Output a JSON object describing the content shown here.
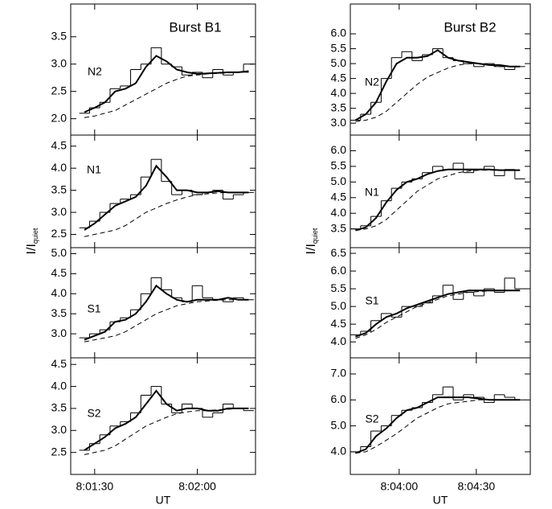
{
  "chart_data": [
    {
      "type": "line",
      "panel_label": "N2",
      "title": "Burst B1",
      "x": [
        28887,
        28890,
        28893,
        28896,
        28899,
        28902,
        28905,
        28908,
        28911,
        28914,
        28917,
        28920,
        28923,
        28926,
        28929,
        28932,
        28935
      ],
      "xlim": [
        28883,
        28937
      ],
      "ylim": [
        1.7,
        4.1
      ],
      "yticks": [
        {
          "value": 2.0,
          "label": "2.0"
        },
        {
          "value": 2.5,
          "label": "2.5"
        },
        {
          "value": 3.0,
          "label": "3.0"
        },
        {
          "value": 3.5,
          "label": "3.5"
        }
      ],
      "series": [
        {
          "style": "step",
          "color": "#000000",
          "values": [
            2.1,
            2.2,
            2.3,
            2.55,
            2.6,
            2.9,
            3.0,
            3.3,
            3.0,
            2.95,
            2.8,
            2.85,
            2.75,
            2.9,
            2.8,
            2.85,
            3.0
          ]
        },
        {
          "style": "smooth",
          "color": "#000000",
          "values": [
            2.12,
            2.2,
            2.3,
            2.5,
            2.55,
            2.65,
            2.95,
            3.15,
            3.05,
            2.9,
            2.85,
            2.82,
            2.83,
            2.84,
            2.85,
            2.85,
            2.87
          ]
        },
        {
          "style": "dashed",
          "color": "#000000",
          "values": [
            2.02,
            2.05,
            2.1,
            2.15,
            2.25,
            2.35,
            2.45,
            2.55,
            2.65,
            2.72,
            2.78,
            2.8,
            2.82,
            2.83,
            2.84,
            2.85,
            2.85
          ]
        }
      ]
    },
    {
      "type": "line",
      "panel_label": "N1",
      "ylabel": {
        "main": "I/I",
        "sub": "quiet"
      },
      "x": [
        28887,
        28890,
        28893,
        28896,
        28899,
        28902,
        28905,
        28908,
        28911,
        28914,
        28917,
        28920,
        28923,
        28926,
        28929,
        28932,
        28935
      ],
      "xlim": [
        28883,
        28937
      ],
      "ylim": [
        2.2,
        4.75
      ],
      "yticks": [
        {
          "value": 2.5,
          "label": "2.5"
        },
        {
          "value": 3.0,
          "label": "3.0"
        },
        {
          "value": 3.5,
          "label": "3.5"
        },
        {
          "value": 4.0,
          "label": "4.0"
        },
        {
          "value": 4.5,
          "label": "4.5"
        }
      ],
      "series": [
        {
          "style": "step",
          "color": "#000000",
          "values": [
            2.65,
            2.8,
            3.0,
            3.2,
            3.3,
            3.4,
            3.8,
            4.2,
            3.7,
            3.4,
            3.5,
            3.4,
            3.45,
            3.5,
            3.3,
            3.4,
            3.45
          ]
        },
        {
          "style": "smooth",
          "color": "#000000",
          "values": [
            2.6,
            2.75,
            2.95,
            3.15,
            3.25,
            3.35,
            3.6,
            4.05,
            3.8,
            3.5,
            3.5,
            3.45,
            3.45,
            3.48,
            3.45,
            3.45,
            3.45
          ]
        },
        {
          "style": "dashed",
          "color": "#000000",
          "values": [
            2.45,
            2.5,
            2.55,
            2.6,
            2.7,
            2.85,
            3.0,
            3.1,
            3.2,
            3.28,
            3.35,
            3.4,
            3.42,
            3.44,
            3.45,
            3.45,
            3.45
          ]
        }
      ]
    },
    {
      "type": "line",
      "panel_label": "S1",
      "x": [
        28887,
        28890,
        28893,
        28896,
        28899,
        28902,
        28905,
        28908,
        28911,
        28914,
        28917,
        28920,
        28923,
        28926,
        28929,
        28932,
        28935
      ],
      "xlim": [
        28883,
        28937
      ],
      "ylim": [
        2.4,
        5.15
      ],
      "yticks": [
        {
          "value": 3.0,
          "label": "3.0"
        },
        {
          "value": 3.5,
          "label": "3.5"
        },
        {
          "value": 4.0,
          "label": "4.0"
        },
        {
          "value": 4.5,
          "label": "4.5"
        },
        {
          "value": 5.0,
          "label": "5.0"
        }
      ],
      "series": [
        {
          "style": "step",
          "color": "#000000",
          "values": [
            2.9,
            3.0,
            3.1,
            3.3,
            3.4,
            3.6,
            4.0,
            4.4,
            4.1,
            3.9,
            3.8,
            4.2,
            3.9,
            3.85,
            3.8,
            3.9,
            3.85
          ]
        },
        {
          "style": "smooth",
          "color": "#000000",
          "values": [
            2.85,
            2.95,
            3.05,
            3.3,
            3.35,
            3.5,
            3.8,
            4.2,
            4.0,
            3.85,
            3.8,
            3.85,
            3.85,
            3.85,
            3.9,
            3.85,
            3.85
          ]
        },
        {
          "style": "dashed",
          "color": "#000000",
          "values": [
            2.8,
            2.85,
            2.9,
            2.95,
            3.05,
            3.2,
            3.35,
            3.5,
            3.6,
            3.7,
            3.75,
            3.8,
            3.82,
            3.84,
            3.85,
            3.85,
            3.85
          ]
        }
      ]
    },
    {
      "type": "line",
      "panel_label": "S2",
      "xlabel": "UT",
      "x": [
        28887,
        28890,
        28893,
        28896,
        28899,
        28902,
        28905,
        28908,
        28911,
        28914,
        28917,
        28920,
        28923,
        28926,
        28929,
        28932,
        28935
      ],
      "xlim": [
        28883,
        28937
      ],
      "xticks": [
        {
          "value": 28890,
          "label": "8:01:30"
        },
        {
          "value": 28920,
          "label": "8:02:00"
        }
      ],
      "ylim": [
        2.0,
        4.65
      ],
      "yticks": [
        {
          "value": 2.5,
          "label": "2.5"
        },
        {
          "value": 3.0,
          "label": "3.0"
        },
        {
          "value": 3.5,
          "label": "3.5"
        },
        {
          "value": 4.0,
          "label": "4.0"
        },
        {
          "value": 4.5,
          "label": "4.5"
        }
      ],
      "series": [
        {
          "style": "step",
          "color": "#000000",
          "values": [
            2.55,
            2.7,
            2.9,
            3.1,
            3.2,
            3.4,
            3.8,
            4.0,
            3.6,
            3.4,
            3.6,
            3.5,
            3.3,
            3.4,
            3.6,
            3.5,
            3.45
          ]
        },
        {
          "style": "smooth",
          "color": "#000000",
          "values": [
            2.55,
            2.7,
            2.85,
            3.05,
            3.15,
            3.3,
            3.6,
            3.9,
            3.6,
            3.45,
            3.5,
            3.5,
            3.45,
            3.45,
            3.5,
            3.5,
            3.5
          ]
        },
        {
          "style": "dashed",
          "color": "#000000",
          "values": [
            2.45,
            2.5,
            2.55,
            2.65,
            2.8,
            2.95,
            3.1,
            3.2,
            3.3,
            3.38,
            3.42,
            3.45,
            3.45,
            3.47,
            3.48,
            3.5,
            3.5
          ]
        }
      ]
    },
    {
      "type": "line",
      "panel_label": "N2",
      "title": "Burst B2",
      "x": [
        29023,
        29027,
        29031,
        29035,
        29039,
        29043,
        29047,
        29051,
        29055,
        29059,
        29063,
        29067,
        29071,
        29075,
        29079,
        29083,
        29087
      ],
      "xlim": [
        29021,
        29091
      ],
      "ylim": [
        2.6,
        7.0
      ],
      "yticks": [
        {
          "value": 3.0,
          "label": "3.0"
        },
        {
          "value": 3.5,
          "label": "3.5"
        },
        {
          "value": 4.0,
          "label": "4.0"
        },
        {
          "value": 4.5,
          "label": "4.5"
        },
        {
          "value": 5.0,
          "label": "5.0"
        },
        {
          "value": 5.5,
          "label": "5.5"
        },
        {
          "value": 6.0,
          "label": "6.0"
        }
      ],
      "series": [
        {
          "style": "step",
          "color": "#000000",
          "values": [
            3.1,
            3.3,
            3.7,
            4.5,
            5.2,
            5.4,
            5.1,
            5.3,
            5.5,
            5.2,
            5.1,
            5.0,
            4.9,
            5.0,
            4.9,
            4.8,
            4.9
          ]
        },
        {
          "style": "smooth",
          "color": "#000000",
          "values": [
            3.1,
            3.3,
            3.7,
            4.4,
            5.0,
            5.2,
            5.2,
            5.25,
            5.45,
            5.2,
            5.1,
            5.05,
            5.0,
            4.95,
            4.95,
            4.9,
            4.9
          ]
        },
        {
          "style": "dashed",
          "color": "#000000",
          "values": [
            3.05,
            3.1,
            3.2,
            3.4,
            3.7,
            4.0,
            4.3,
            4.55,
            4.7,
            4.85,
            4.95,
            5.0,
            5.0,
            4.95,
            4.9,
            4.9,
            4.9
          ]
        }
      ]
    },
    {
      "type": "line",
      "panel_label": "N1",
      "ylabel": {
        "main": "I/I",
        "sub": "quiet"
      },
      "x": [
        29023,
        29027,
        29031,
        29035,
        29039,
        29043,
        29047,
        29051,
        29055,
        29059,
        29063,
        29067,
        29071,
        29075,
        29079,
        29083,
        29087
      ],
      "xlim": [
        29021,
        29091
      ],
      "ylim": [
        2.9,
        6.5
      ],
      "yticks": [
        {
          "value": 3.5,
          "label": "3.5"
        },
        {
          "value": 4.0,
          "label": "4.0"
        },
        {
          "value": 4.5,
          "label": "4.5"
        },
        {
          "value": 5.0,
          "label": "5.0"
        },
        {
          "value": 5.5,
          "label": "5.5"
        },
        {
          "value": 6.0,
          "label": "6.0"
        }
      ],
      "series": [
        {
          "style": "step",
          "color": "#000000",
          "values": [
            3.5,
            3.6,
            3.9,
            4.4,
            4.8,
            5.0,
            5.1,
            5.3,
            5.5,
            5.4,
            5.6,
            5.3,
            5.4,
            5.5,
            5.2,
            5.4,
            5.1
          ]
        },
        {
          "style": "smooth",
          "color": "#000000",
          "values": [
            3.45,
            3.55,
            3.85,
            4.35,
            4.75,
            5.0,
            5.1,
            5.25,
            5.35,
            5.4,
            5.4,
            5.4,
            5.4,
            5.4,
            5.38,
            5.38,
            5.38
          ]
        },
        {
          "style": "dashed",
          "color": "#000000",
          "values": [
            3.45,
            3.5,
            3.6,
            3.8,
            4.1,
            4.4,
            4.7,
            4.9,
            5.1,
            5.2,
            5.3,
            5.35,
            5.38,
            5.38,
            5.38,
            5.38,
            5.38
          ]
        }
      ]
    },
    {
      "type": "line",
      "panel_label": "S1",
      "x": [
        29023,
        29027,
        29031,
        29035,
        29039,
        29043,
        29047,
        29051,
        29055,
        29059,
        29063,
        29067,
        29071,
        29075,
        29079,
        29083,
        29087
      ],
      "xlim": [
        29021,
        29091
      ],
      "ylim": [
        3.55,
        6.66
      ],
      "yticks": [
        {
          "value": 4.0,
          "label": "4.0"
        },
        {
          "value": 4.5,
          "label": "4.5"
        },
        {
          "value": 5.0,
          "label": "5.0"
        },
        {
          "value": 5.5,
          "label": "5.5"
        },
        {
          "value": 6.0,
          "label": "6.0"
        },
        {
          "value": 6.5,
          "label": "6.5"
        }
      ],
      "series": [
        {
          "style": "step",
          "color": "#000000",
          "values": [
            4.2,
            4.3,
            4.6,
            4.8,
            4.7,
            5.0,
            5.0,
            5.1,
            5.3,
            5.6,
            5.2,
            5.4,
            5.3,
            5.5,
            5.4,
            5.8,
            5.5
          ]
        },
        {
          "style": "smooth",
          "color": "#000000",
          "values": [
            4.15,
            4.25,
            4.5,
            4.7,
            4.8,
            4.95,
            5.05,
            5.15,
            5.25,
            5.35,
            5.4,
            5.45,
            5.45,
            5.45,
            5.45,
            5.45,
            5.45
          ]
        },
        {
          "style": "dashed",
          "color": "#000000",
          "values": [
            4.1,
            4.2,
            4.35,
            4.55,
            4.7,
            4.85,
            5.0,
            5.1,
            5.2,
            5.3,
            5.35,
            5.4,
            5.42,
            5.44,
            5.45,
            5.45,
            5.45
          ]
        }
      ]
    },
    {
      "type": "line",
      "panel_label": "S2",
      "xlabel": "UT",
      "x": [
        29023,
        29027,
        29031,
        29035,
        29039,
        29043,
        29047,
        29051,
        29055,
        29059,
        29063,
        29067,
        29071,
        29075,
        29079,
        29083,
        29087
      ],
      "xlim": [
        29021,
        29091
      ],
      "xticks": [
        {
          "value": 29040,
          "label": "8:04:00"
        },
        {
          "value": 29070,
          "label": "8:04:30"
        }
      ],
      "ylim": [
        3.13,
        7.62
      ],
      "yticks": [
        {
          "value": 4.0,
          "label": "4.0"
        },
        {
          "value": 5.0,
          "label": "5.0"
        },
        {
          "value": 6.0,
          "label": "6.0"
        },
        {
          "value": 7.0,
          "label": "7.0"
        }
      ],
      "series": [
        {
          "style": "step",
          "color": "#000000",
          "values": [
            4.0,
            4.2,
            4.8,
            5.0,
            5.4,
            5.6,
            5.7,
            5.9,
            6.2,
            6.5,
            6.0,
            6.2,
            6.1,
            5.9,
            6.2,
            6.1,
            6.0
          ]
        },
        {
          "style": "smooth",
          "color": "#000000",
          "values": [
            3.95,
            4.1,
            4.6,
            4.9,
            5.3,
            5.6,
            5.7,
            5.9,
            6.1,
            6.1,
            6.1,
            6.1,
            6.05,
            6.0,
            6.0,
            6.0,
            6.0
          ]
        },
        {
          "style": "dashed",
          "color": "#000000",
          "values": [
            3.95,
            4.0,
            4.2,
            4.45,
            4.7,
            5.0,
            5.3,
            5.5,
            5.7,
            5.85,
            5.9,
            5.95,
            6.0,
            6.0,
            6.0,
            6.0,
            6.0
          ]
        }
      ]
    }
  ]
}
